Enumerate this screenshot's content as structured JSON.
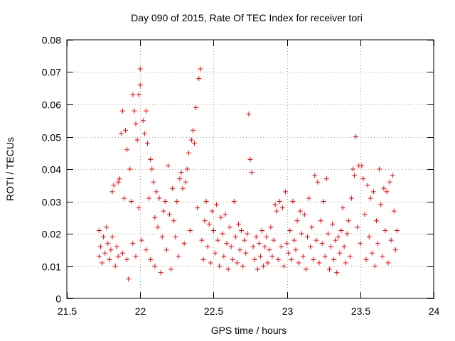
{
  "chart_data": {
    "type": "scatter",
    "title": "Day 090 of 2015, Rate Of TEC Index for receiver tori",
    "xlabel": "GPS time / hours",
    "ylabel": "ROTI / TECUs",
    "xlim": [
      21.5,
      24
    ],
    "ylim": [
      0,
      0.08
    ],
    "x_ticks": [
      21.5,
      22,
      22.5,
      23,
      23.5,
      24
    ],
    "x_tick_labels": [
      "21.5",
      "22",
      "22.5",
      "23",
      "23.5",
      "24"
    ],
    "y_ticks": [
      0,
      0.01,
      0.02,
      0.03,
      0.04,
      0.05,
      0.06,
      0.07,
      0.08
    ],
    "y_tick_labels": [
      "0",
      "0.01",
      "0.02",
      "0.03",
      "0.04",
      "0.05",
      "0.06",
      "0.07",
      "0.08"
    ],
    "grid": true,
    "marker": "+",
    "color": "#ff0000",
    "series": [
      {
        "name": "ROTI",
        "points": [
          [
            21.72,
            0.021
          ],
          [
            21.72,
            0.013
          ],
          [
            21.73,
            0.016
          ],
          [
            21.74,
            0.011
          ],
          [
            21.75,
            0.019
          ],
          [
            21.76,
            0.014
          ],
          [
            21.77,
            0.022
          ],
          [
            21.78,
            0.017
          ],
          [
            21.79,
            0.012
          ],
          [
            21.8,
            0.015
          ],
          [
            21.81,
            0.033
          ],
          [
            21.81,
            0.019
          ],
          [
            21.82,
            0.035
          ],
          [
            21.83,
            0.01
          ],
          [
            21.84,
            0.016
          ],
          [
            21.85,
            0.036
          ],
          [
            21.85,
            0.013
          ],
          [
            21.86,
            0.037
          ],
          [
            21.87,
            0.051
          ],
          [
            21.88,
            0.058
          ],
          [
            21.88,
            0.014
          ],
          [
            21.89,
            0.031
          ],
          [
            21.9,
            0.052
          ],
          [
            21.91,
            0.046
          ],
          [
            21.91,
            0.012
          ],
          [
            21.92,
            0.006
          ],
          [
            21.93,
            0.04
          ],
          [
            21.94,
            0.03
          ],
          [
            21.95,
            0.063
          ],
          [
            21.95,
            0.017
          ],
          [
            21.96,
            0.058
          ],
          [
            21.97,
            0.054
          ],
          [
            21.97,
            0.013
          ],
          [
            21.98,
            0.049
          ],
          [
            21.99,
            0.063
          ],
          [
            21.99,
            0.028
          ],
          [
            22.0,
            0.071
          ],
          [
            22.0,
            0.066
          ],
          [
            22.01,
            0.018
          ],
          [
            22.02,
            0.055
          ],
          [
            22.03,
            0.051
          ],
          [
            22.04,
            0.058
          ],
          [
            22.04,
            0.015
          ],
          [
            22.05,
            0.048
          ],
          [
            22.06,
            0.031
          ],
          [
            22.07,
            0.043
          ],
          [
            22.07,
            0.012
          ],
          [
            22.08,
            0.04
          ],
          [
            22.09,
            0.036
          ],
          [
            22.1,
            0.025
          ],
          [
            22.1,
            0.01
          ],
          [
            22.11,
            0.033
          ],
          [
            22.12,
            0.022
          ],
          [
            22.13,
            0.031
          ],
          [
            22.14,
            0.008
          ],
          [
            22.15,
            0.019
          ],
          [
            22.16,
            0.027
          ],
          [
            22.17,
            0.03
          ],
          [
            22.18,
            0.015
          ],
          [
            22.19,
            0.041
          ],
          [
            22.2,
            0.026
          ],
          [
            22.21,
            0.009
          ],
          [
            22.22,
            0.034
          ],
          [
            22.23,
            0.024
          ],
          [
            22.24,
            0.019
          ],
          [
            22.25,
            0.03
          ],
          [
            22.26,
            0.013
          ],
          [
            22.27,
            0.037
          ],
          [
            22.28,
            0.039
          ],
          [
            22.29,
            0.034
          ],
          [
            22.3,
            0.017
          ],
          [
            22.31,
            0.036
          ],
          [
            22.32,
            0.04
          ],
          [
            22.33,
            0.045
          ],
          [
            22.34,
            0.021
          ],
          [
            22.35,
            0.049
          ],
          [
            22.36,
            0.052
          ],
          [
            22.37,
            0.048
          ],
          [
            22.38,
            0.059
          ],
          [
            22.39,
            0.028
          ],
          [
            22.4,
            0.068
          ],
          [
            22.41,
            0.071
          ],
          [
            22.42,
            0.018
          ],
          [
            22.43,
            0.012
          ],
          [
            22.44,
            0.024
          ],
          [
            22.45,
            0.03
          ],
          [
            22.46,
            0.016
          ],
          [
            22.47,
            0.023
          ],
          [
            22.48,
            0.011
          ],
          [
            22.49,
            0.027
          ],
          [
            22.5,
            0.021
          ],
          [
            22.51,
            0.014
          ],
          [
            22.52,
            0.029
          ],
          [
            22.53,
            0.018
          ],
          [
            22.54,
            0.01
          ],
          [
            22.55,
            0.025
          ],
          [
            22.56,
            0.02
          ],
          [
            22.57,
            0.013
          ],
          [
            22.58,
            0.026
          ],
          [
            22.59,
            0.017
          ],
          [
            22.6,
            0.009
          ],
          [
            22.61,
            0.022
          ],
          [
            22.62,
            0.016
          ],
          [
            22.63,
            0.012
          ],
          [
            22.64,
            0.03
          ],
          [
            22.65,
            0.019
          ],
          [
            22.66,
            0.011
          ],
          [
            22.67,
            0.023
          ],
          [
            22.68,
            0.015
          ],
          [
            22.69,
            0.021
          ],
          [
            22.7,
            0.01
          ],
          [
            22.71,
            0.018
          ],
          [
            22.72,
            0.014
          ],
          [
            22.73,
            0.02
          ],
          [
            22.74,
            0.057
          ],
          [
            22.75,
            0.043
          ],
          [
            22.76,
            0.039
          ],
          [
            22.77,
            0.016
          ],
          [
            22.78,
            0.012
          ],
          [
            22.79,
            0.019
          ],
          [
            22.8,
            0.009
          ],
          [
            22.81,
            0.017
          ],
          [
            22.82,
            0.013
          ],
          [
            22.83,
            0.021
          ],
          [
            22.84,
            0.01
          ],
          [
            22.85,
            0.016
          ],
          [
            22.86,
            0.019
          ],
          [
            22.87,
            0.011
          ],
          [
            22.88,
            0.015
          ],
          [
            22.89,
            0.022
          ],
          [
            22.9,
            0.013
          ],
          [
            22.91,
            0.018
          ],
          [
            22.92,
            0.029
          ],
          [
            22.93,
            0.027
          ],
          [
            22.94,
            0.012
          ],
          [
            22.95,
            0.03
          ],
          [
            22.96,
            0.016
          ],
          [
            22.97,
            0.028
          ],
          [
            22.98,
            0.01
          ],
          [
            22.99,
            0.033
          ],
          [
            23.0,
            0.017
          ],
          [
            23.01,
            0.014
          ],
          [
            23.02,
            0.021
          ],
          [
            23.03,
            0.012
          ],
          [
            23.04,
            0.03
          ],
          [
            23.05,
            0.018
          ],
          [
            23.06,
            0.015
          ],
          [
            23.07,
            0.024
          ],
          [
            23.08,
            0.011
          ],
          [
            23.09,
            0.027
          ],
          [
            23.1,
            0.02
          ],
          [
            23.11,
            0.013
          ],
          [
            23.12,
            0.026
          ],
          [
            23.13,
            0.009
          ],
          [
            23.14,
            0.019
          ],
          [
            23.15,
            0.031
          ],
          [
            23.16,
            0.016
          ],
          [
            23.17,
            0.022
          ],
          [
            23.18,
            0.012
          ],
          [
            23.19,
            0.038
          ],
          [
            23.2,
            0.018
          ],
          [
            23.21,
            0.036
          ],
          [
            23.22,
            0.011
          ],
          [
            23.23,
            0.024
          ],
          [
            23.24,
            0.017
          ],
          [
            23.25,
            0.03
          ],
          [
            23.26,
            0.013
          ],
          [
            23.27,
            0.037
          ],
          [
            23.28,
            0.02
          ],
          [
            23.29,
            0.009
          ],
          [
            23.3,
            0.016
          ],
          [
            23.31,
            0.023
          ],
          [
            23.32,
            0.012
          ],
          [
            23.33,
            0.018
          ],
          [
            23.34,
            0.008
          ],
          [
            23.35,
            0.019
          ],
          [
            23.36,
            0.014
          ],
          [
            23.37,
            0.021
          ],
          [
            23.38,
            0.028
          ],
          [
            23.39,
            0.016
          ],
          [
            23.4,
            0.011
          ],
          [
            23.41,
            0.02
          ],
          [
            23.42,
            0.024
          ],
          [
            23.43,
            0.013
          ],
          [
            23.44,
            0.031
          ],
          [
            23.45,
            0.04
          ],
          [
            23.46,
            0.038
          ],
          [
            23.47,
            0.05
          ],
          [
            23.48,
            0.022
          ],
          [
            23.49,
            0.041
          ],
          [
            23.5,
            0.017
          ],
          [
            23.51,
            0.041
          ],
          [
            23.52,
            0.037
          ],
          [
            23.53,
            0.026
          ],
          [
            23.54,
            0.012
          ],
          [
            23.55,
            0.035
          ],
          [
            23.56,
            0.019
          ],
          [
            23.57,
            0.031
          ],
          [
            23.58,
            0.014
          ],
          [
            23.59,
            0.033
          ],
          [
            23.6,
            0.01
          ],
          [
            23.61,
            0.024
          ],
          [
            23.62,
            0.017
          ],
          [
            23.63,
            0.04
          ],
          [
            23.64,
            0.029
          ],
          [
            23.65,
            0.013
          ],
          [
            23.66,
            0.034
          ],
          [
            23.67,
            0.021
          ],
          [
            23.68,
            0.033
          ],
          [
            23.69,
            0.011
          ],
          [
            23.7,
            0.036
          ],
          [
            23.71,
            0.018
          ],
          [
            23.72,
            0.038
          ],
          [
            23.73,
            0.027
          ],
          [
            23.74,
            0.015
          ],
          [
            23.75,
            0.021
          ]
        ]
      }
    ]
  }
}
